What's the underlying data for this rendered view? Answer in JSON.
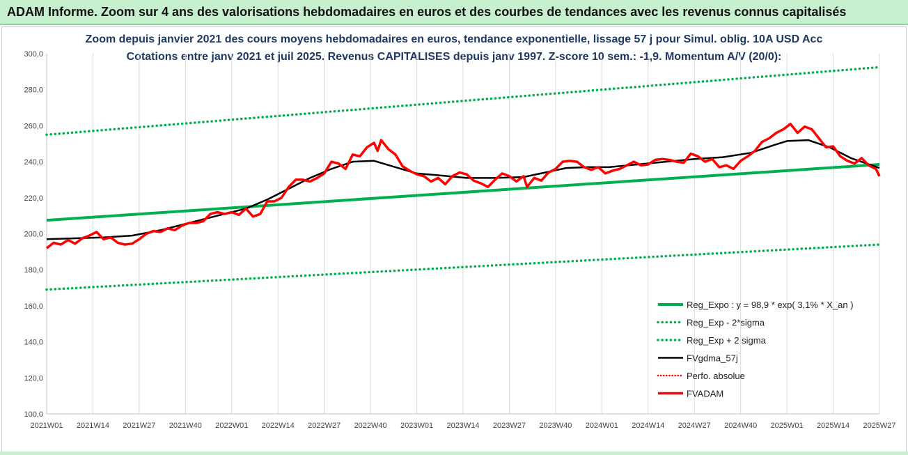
{
  "page_title": "ADAM Informe. Zoom sur 4 ans des valorisations hebdomadaires en euros et des courbes de tendances avec les revenus connus capitalisés",
  "colors": {
    "banner_bg": "#c6efce",
    "title_text": "#1f3864",
    "green": "#00b050",
    "black": "#000000",
    "red": "#ff0000"
  },
  "chart_data": {
    "type": "line",
    "title": "Zoom depuis janvier 2021 des cours moyens hebdomadaires en euros, tendance exponentielle, lissage 57 j pour Simul. oblig. 10A USD Acc",
    "subtitle": "Cotations entre janv 2021 et juil 2025. Revenus CAPITALISES depuis janv 1997. Z-score 10 sem.: -1,9. Momentum A/V (20/0):",
    "ylim": [
      100,
      300
    ],
    "y_ticks": [
      "100,0",
      "120,0",
      "140,0",
      "160,0",
      "180,0",
      "200,0",
      "220,0",
      "240,0",
      "260,0",
      "280,0",
      "300,0"
    ],
    "grid": "vertical",
    "legend_position": "bottom-right",
    "x_ticks": [
      {
        "week": 0,
        "label": "2021W01"
      },
      {
        "week": 13,
        "label": "2021W14"
      },
      {
        "week": 26,
        "label": "2021W27"
      },
      {
        "week": 39,
        "label": "2021W40"
      },
      {
        "week": 52,
        "label": "2022W01"
      },
      {
        "week": 65,
        "label": "2022W14"
      },
      {
        "week": 78,
        "label": "2022W27"
      },
      {
        "week": 91,
        "label": "2022W40"
      },
      {
        "week": 104,
        "label": "2023W01"
      },
      {
        "week": 117,
        "label": "2023W14"
      },
      {
        "week": 130,
        "label": "2023W27"
      },
      {
        "week": 143,
        "label": "2023W40"
      },
      {
        "week": 156,
        "label": "2024W01"
      },
      {
        "week": 169,
        "label": "2024W14"
      },
      {
        "week": 182,
        "label": "2024W27"
      },
      {
        "week": 195,
        "label": "2024W40"
      },
      {
        "week": 208,
        "label": "2025W01"
      },
      {
        "week": 221,
        "label": "2025W14"
      },
      {
        "week": 234,
        "label": "2025W27"
      }
    ],
    "series": [
      {
        "name": "Reg_Expo : y = 98,9 * exp( 3,1% *  X_an )",
        "style": "solid-green",
        "points": [
          [
            0,
            207.5
          ],
          [
            234,
            238.5
          ]
        ]
      },
      {
        "name": "Reg_Exp - 2*sigma",
        "style": "dotted-green",
        "points": [
          [
            0,
            169
          ],
          [
            234,
            194
          ]
        ]
      },
      {
        "name": "Reg_Exp + 2 sigma",
        "style": "dotted-green",
        "points": [
          [
            0,
            255
          ],
          [
            234,
            292.5
          ]
        ]
      },
      {
        "name": "FVgdma_57j",
        "style": "solid-black",
        "points": [
          [
            0,
            197
          ],
          [
            8,
            197.5
          ],
          [
            16,
            198
          ],
          [
            24,
            199
          ],
          [
            32,
            202
          ],
          [
            40,
            206
          ],
          [
            48,
            210
          ],
          [
            56,
            214
          ],
          [
            62,
            219
          ],
          [
            68,
            225
          ],
          [
            74,
            231
          ],
          [
            80,
            236
          ],
          [
            86,
            240
          ],
          [
            92,
            240.5
          ],
          [
            98,
            237
          ],
          [
            104,
            233.5
          ],
          [
            110,
            232.5
          ],
          [
            118,
            231
          ],
          [
            126,
            231
          ],
          [
            134,
            231.5
          ],
          [
            140,
            234
          ],
          [
            146,
            236.5
          ],
          [
            152,
            237
          ],
          [
            158,
            237
          ],
          [
            166,
            238.5
          ],
          [
            174,
            240
          ],
          [
            182,
            241.5
          ],
          [
            190,
            242.5
          ],
          [
            198,
            245
          ],
          [
            204,
            249
          ],
          [
            208,
            251.5
          ],
          [
            214,
            252
          ],
          [
            220,
            248
          ],
          [
            226,
            242
          ],
          [
            234,
            236.5
          ]
        ]
      },
      {
        "name": "Perfo. absolue",
        "style": "dotted-red",
        "points": []
      },
      {
        "name": "FVADAM",
        "style": "solid-red",
        "points": [
          [
            0,
            192
          ],
          [
            2,
            195
          ],
          [
            4,
            194
          ],
          [
            6,
            196.5
          ],
          [
            8,
            194.5
          ],
          [
            10,
            197.5
          ],
          [
            12,
            199
          ],
          [
            14,
            201
          ],
          [
            16,
            197
          ],
          [
            18,
            198
          ],
          [
            20,
            195
          ],
          [
            22,
            194
          ],
          [
            24,
            194.5
          ],
          [
            26,
            197
          ],
          [
            28,
            200
          ],
          [
            30,
            201.5
          ],
          [
            32,
            201
          ],
          [
            34,
            203
          ],
          [
            36,
            202
          ],
          [
            38,
            204.5
          ],
          [
            40,
            206
          ],
          [
            42,
            206
          ],
          [
            44,
            207
          ],
          [
            46,
            211
          ],
          [
            48,
            212
          ],
          [
            50,
            211
          ],
          [
            52,
            212
          ],
          [
            54,
            210.5
          ],
          [
            56,
            214
          ],
          [
            58,
            209.5
          ],
          [
            60,
            211
          ],
          [
            62,
            218
          ],
          [
            64,
            218
          ],
          [
            66,
            220
          ],
          [
            68,
            226
          ],
          [
            70,
            230
          ],
          [
            72,
            230
          ],
          [
            74,
            229
          ],
          [
            76,
            231
          ],
          [
            78,
            233.5
          ],
          [
            80,
            240
          ],
          [
            82,
            239
          ],
          [
            84,
            236
          ],
          [
            86,
            244
          ],
          [
            88,
            243
          ],
          [
            90,
            248
          ],
          [
            92,
            250.5
          ],
          [
            93,
            246
          ],
          [
            94,
            252
          ],
          [
            96,
            247
          ],
          [
            98,
            244
          ],
          [
            100,
            237.5
          ],
          [
            102,
            235
          ],
          [
            104,
            233
          ],
          [
            106,
            232
          ],
          [
            108,
            229
          ],
          [
            110,
            231
          ],
          [
            112,
            227.5
          ],
          [
            114,
            232
          ],
          [
            116,
            234
          ],
          [
            118,
            233
          ],
          [
            120,
            229.5
          ],
          [
            122,
            228
          ],
          [
            124,
            226
          ],
          [
            126,
            230
          ],
          [
            128,
            233.5
          ],
          [
            130,
            232
          ],
          [
            132,
            229
          ],
          [
            134,
            232
          ],
          [
            135,
            226
          ],
          [
            137,
            231
          ],
          [
            139,
            229.5
          ],
          [
            141,
            234
          ],
          [
            143,
            236
          ],
          [
            145,
            240
          ],
          [
            147,
            240.5
          ],
          [
            149,
            240
          ],
          [
            151,
            237
          ],
          [
            153,
            235.5
          ],
          [
            155,
            237
          ],
          [
            157,
            233.5
          ],
          [
            159,
            235
          ],
          [
            161,
            236
          ],
          [
            163,
            238
          ],
          [
            165,
            240
          ],
          [
            167,
            238
          ],
          [
            169,
            238.5
          ],
          [
            171,
            241
          ],
          [
            173,
            241.5
          ],
          [
            175,
            241
          ],
          [
            177,
            240
          ],
          [
            179,
            239.5
          ],
          [
            181,
            244.5
          ],
          [
            183,
            243
          ],
          [
            185,
            240
          ],
          [
            187,
            241.5
          ],
          [
            189,
            237
          ],
          [
            191,
            238
          ],
          [
            193,
            236
          ],
          [
            195,
            240.5
          ],
          [
            197,
            243
          ],
          [
            199,
            246
          ],
          [
            201,
            251
          ],
          [
            203,
            253
          ],
          [
            205,
            256
          ],
          [
            207,
            258
          ],
          [
            209,
            261
          ],
          [
            211,
            256
          ],
          [
            213,
            259.5
          ],
          [
            215,
            258
          ],
          [
            217,
            253
          ],
          [
            219,
            248
          ],
          [
            221,
            248.5
          ],
          [
            223,
            243
          ],
          [
            225,
            240.5
          ],
          [
            227,
            239
          ],
          [
            229,
            242
          ],
          [
            231,
            238
          ],
          [
            233,
            236
          ],
          [
            234,
            232
          ]
        ]
      }
    ]
  }
}
